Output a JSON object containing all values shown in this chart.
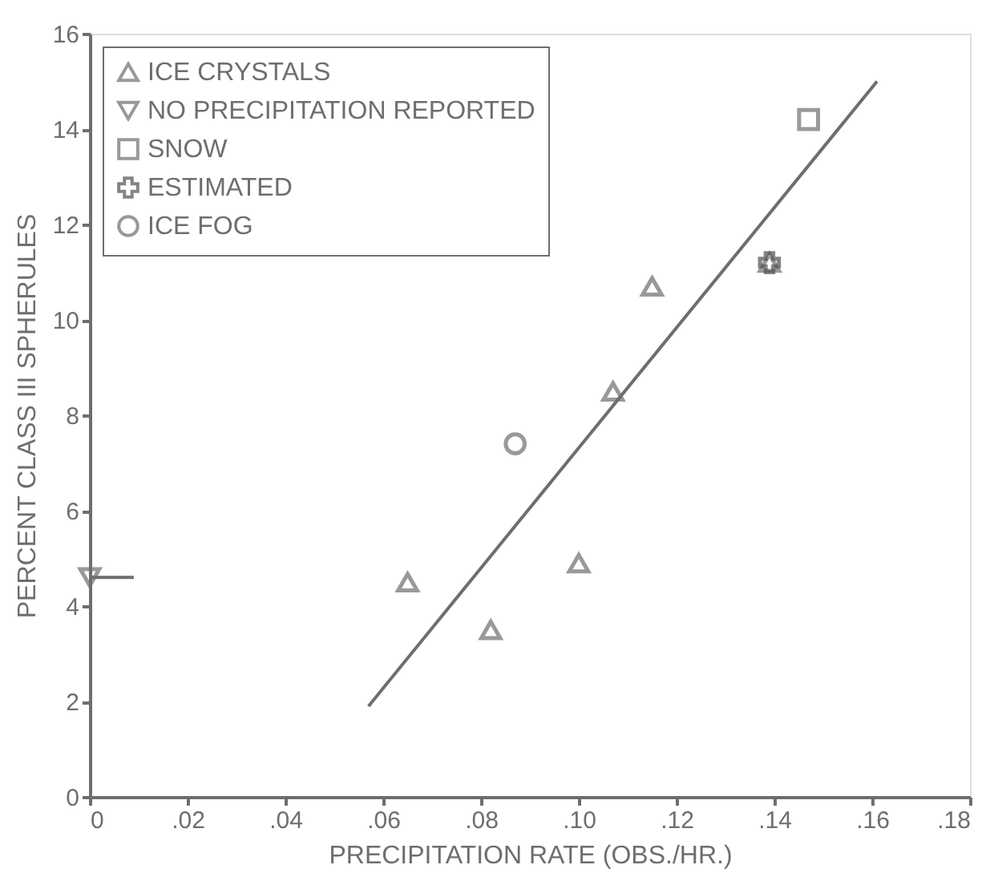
{
  "chart_data": {
    "type": "scatter",
    "xlabel": "PRECIPITATION RATE (OBS./HR.)",
    "ylabel": "PERCENT CLASS III SPHERULES",
    "xlim": [
      0,
      0.18
    ],
    "ylim": [
      0,
      16
    ],
    "xticks": [
      0,
      {
        "value": 0.02,
        "label": ".02"
      },
      {
        "value": 0.04,
        "label": ".04"
      },
      {
        "value": 0.06,
        "label": ".06"
      },
      {
        "value": 0.08,
        "label": ".08"
      },
      {
        "value": 0.1,
        "label": ".10"
      },
      {
        "value": 0.12,
        "label": ".12"
      },
      {
        "value": 0.14,
        "label": ".14"
      },
      {
        "value": 0.16,
        "label": ".16"
      },
      {
        "value": 0.18,
        "label": ".18"
      }
    ],
    "yticks": [
      0,
      2,
      4,
      6,
      8,
      10,
      12,
      14,
      16
    ],
    "grid": false,
    "legend": "top left",
    "series": [
      {
        "name": "ICE CRYSTALS",
        "color": "#6e6e6e",
        "marker": "triangle",
        "x": [
          0.065,
          0.082,
          0.1,
          0.107,
          0.115,
          0.139
        ],
        "values": [
          4.5,
          3.5,
          4.9,
          8.5,
          10.7,
          11.2
        ]
      },
      {
        "name": "NO PRECIPITATION REPORTED",
        "color": "#6e6e6e",
        "marker": "triangle-down",
        "x": [
          0
        ],
        "values": [
          4.6
        ],
        "xerrors": [
          [
            0,
            0.009
          ]
        ]
      },
      {
        "name": "SNOW",
        "color": "#6e6e6e",
        "marker": "square",
        "x": [
          0.147
        ],
        "values": [
          14.2
        ]
      },
      {
        "name": "ESTIMATED",
        "color": "#505050",
        "marker": "cross",
        "x": [
          0.139
        ],
        "values": [
          11.2
        ]
      },
      {
        "name": "ICE FOG",
        "color": "#6e6e6e",
        "marker": "circle",
        "x": [
          0.087
        ],
        "values": [
          7.4
        ]
      },
      {
        "type": "line",
        "color": "#6e6e6e",
        "x": [
          0.057,
          0.161
        ],
        "values": [
          1.9,
          15.0
        ]
      }
    ]
  }
}
